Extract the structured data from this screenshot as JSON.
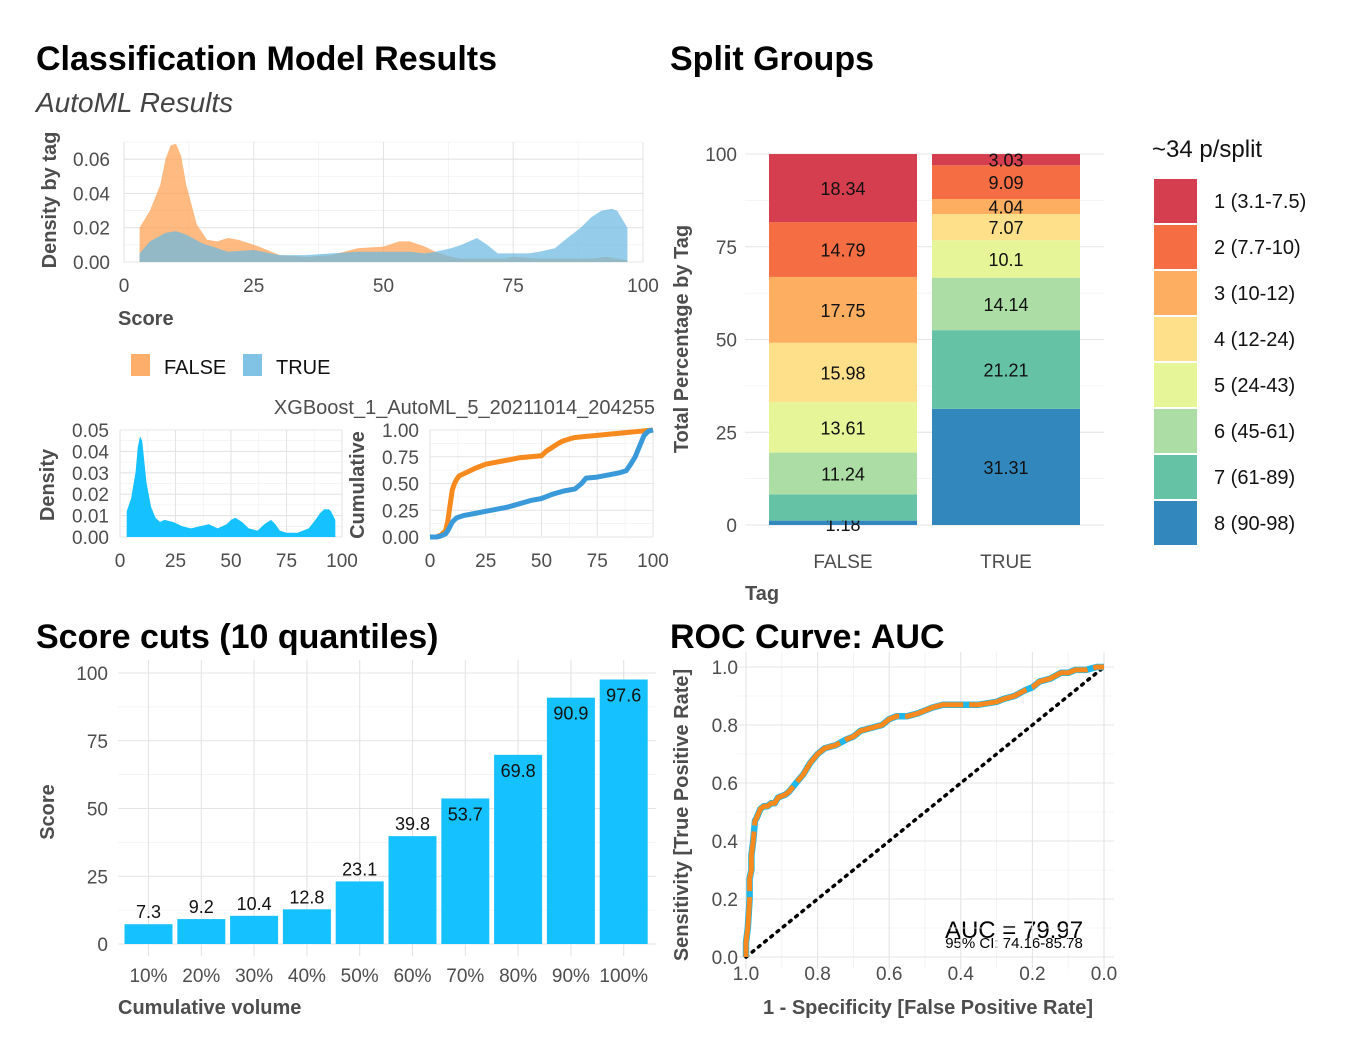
{
  "header": {
    "title": "Classification Model Results",
    "subtitle": "AutoML Results"
  },
  "colors": {
    "false_orange": "#FDA050",
    "true_blue": "#6BB9E0",
    "sky": "#16C1FF",
    "roc_orange": "#F68A1E",
    "roc_blue": "#20B8E8",
    "split_palette": [
      "#D53E4F",
      "#F46D43",
      "#FDAE61",
      "#FEE08B",
      "#E6F598",
      "#ABDDA4",
      "#66C2A5",
      "#3288BD"
    ]
  },
  "chart_data": [
    {
      "id": "density_by_tag",
      "type": "area",
      "xlabel": "Score",
      "ylabel": "Density by tag",
      "xlim": [
        0,
        100
      ],
      "ylim": [
        0,
        0.07
      ],
      "x_ticks": [
        "0",
        "25",
        "50",
        "75",
        "100"
      ],
      "y_ticks": [
        "0.00",
        "0.02",
        "0.04",
        "0.06"
      ],
      "legend_position": "bottom",
      "series": [
        {
          "name": "FALSE",
          "color": "#FDA050",
          "x": [
            3,
            5,
            7,
            8,
            9,
            10,
            11,
            12,
            14,
            16,
            18,
            20,
            22,
            24,
            26,
            30,
            35,
            40,
            45,
            50,
            53,
            55,
            58,
            60,
            63,
            65,
            68,
            70,
            73,
            75,
            80,
            85,
            90,
            93,
            95,
            97
          ],
          "y": [
            0.02,
            0.03,
            0.045,
            0.06,
            0.068,
            0.069,
            0.062,
            0.045,
            0.022,
            0.013,
            0.012,
            0.014,
            0.013,
            0.011,
            0.009,
            0.004,
            0.003,
            0.004,
            0.008,
            0.009,
            0.012,
            0.012,
            0.009,
            0.006,
            0.003,
            0.002,
            0.002,
            0.002,
            0.002,
            0.003,
            0.002,
            0.002,
            0.002,
            0.003,
            0.002,
            0.001
          ]
        },
        {
          "name": "TRUE",
          "color": "#6BB9E0",
          "x": [
            3,
            5,
            8,
            10,
            12,
            15,
            20,
            25,
            30,
            35,
            40,
            45,
            50,
            55,
            58,
            60,
            63,
            65,
            68,
            70,
            72,
            75,
            78,
            80,
            83,
            85,
            88,
            90,
            92,
            94,
            95,
            96,
            97
          ],
          "y": [
            0.005,
            0.012,
            0.017,
            0.018,
            0.016,
            0.011,
            0.006,
            0.007,
            0.004,
            0.004,
            0.005,
            0.006,
            0.006,
            0.006,
            0.005,
            0.006,
            0.008,
            0.01,
            0.014,
            0.01,
            0.005,
            0.005,
            0.005,
            0.006,
            0.008,
            0.013,
            0.02,
            0.026,
            0.03,
            0.031,
            0.03,
            0.025,
            0.02
          ]
        }
      ]
    },
    {
      "id": "score_density",
      "type": "area",
      "xlabel": "",
      "ylabel": "Density",
      "xlim": [
        0,
        100
      ],
      "ylim": [
        0,
        0.05
      ],
      "x_ticks": [
        "0",
        "25",
        "50",
        "75",
        "100"
      ],
      "y_ticks": [
        "0.00",
        "0.01",
        "0.02",
        "0.03",
        "0.04",
        "0.05"
      ],
      "x": [
        3,
        5,
        7,
        8,
        9,
        10,
        11,
        12,
        14,
        16,
        18,
        20,
        24,
        28,
        32,
        36,
        40,
        44,
        48,
        50,
        52,
        55,
        58,
        62,
        65,
        68,
        70,
        72,
        75,
        80,
        85,
        88,
        90,
        92,
        94,
        95,
        96,
        97
      ],
      "values": [
        0.012,
        0.018,
        0.03,
        0.042,
        0.047,
        0.045,
        0.035,
        0.025,
        0.014,
        0.009,
        0.007,
        0.008,
        0.007,
        0.005,
        0.004,
        0.005,
        0.006,
        0.004,
        0.006,
        0.008,
        0.009,
        0.007,
        0.004,
        0.003,
        0.006,
        0.008,
        0.006,
        0.003,
        0.002,
        0.002,
        0.004,
        0.008,
        0.011,
        0.013,
        0.013,
        0.012,
        0.01,
        0.008
      ]
    },
    {
      "id": "cumulative",
      "type": "line",
      "title": "XGBoost_1_AutoML_5_20211014_204255",
      "xlabel": "",
      "ylabel": "Cumulative",
      "xlim": [
        0,
        100
      ],
      "ylim": [
        0,
        1
      ],
      "x_ticks": [
        "0",
        "25",
        "50",
        "75",
        "100"
      ],
      "y_ticks": [
        "0.00",
        "0.25",
        "0.50",
        "0.75",
        "1.00"
      ],
      "series": [
        {
          "name": "FALSE",
          "color": "#F68A1E",
          "x": [
            0,
            3,
            5,
            7,
            8,
            9,
            10,
            11,
            12,
            13,
            15,
            18,
            20,
            25,
            30,
            35,
            40,
            45,
            50,
            52,
            55,
            58,
            60,
            63,
            65,
            70,
            75,
            80,
            85,
            90,
            95,
            100
          ],
          "y": [
            0,
            0,
            0.02,
            0.06,
            0.15,
            0.3,
            0.44,
            0.5,
            0.54,
            0.57,
            0.59,
            0.62,
            0.64,
            0.68,
            0.7,
            0.72,
            0.74,
            0.75,
            0.76,
            0.8,
            0.84,
            0.88,
            0.9,
            0.92,
            0.93,
            0.94,
            0.95,
            0.96,
            0.97,
            0.98,
            0.99,
            1.0
          ]
        },
        {
          "name": "TRUE",
          "color": "#3A9AD9",
          "x": [
            0,
            3,
            5,
            7,
            8,
            9,
            10,
            12,
            15,
            20,
            25,
            30,
            35,
            40,
            45,
            50,
            55,
            60,
            65,
            68,
            70,
            75,
            80,
            85,
            88,
            90,
            92,
            94,
            96,
            98,
            100
          ],
          "y": [
            0,
            0,
            0.01,
            0.03,
            0.06,
            0.1,
            0.14,
            0.18,
            0.2,
            0.22,
            0.24,
            0.26,
            0.28,
            0.31,
            0.34,
            0.36,
            0.4,
            0.43,
            0.45,
            0.5,
            0.55,
            0.56,
            0.58,
            0.6,
            0.62,
            0.68,
            0.75,
            0.85,
            0.95,
            0.99,
            1.0
          ]
        }
      ]
    },
    {
      "id": "split_groups",
      "type": "bar",
      "title": "Split Groups",
      "xlabel": "Tag",
      "ylabel": "Total Percentage by Tag",
      "ylim": [
        0,
        100
      ],
      "y_ticks": [
        "0",
        "25",
        "50",
        "75",
        "100"
      ],
      "categories": [
        "FALSE",
        "TRUE"
      ],
      "legend_title": "~34 p/split",
      "legend_position": "right",
      "series": [
        {
          "name": "1 (3.1-7.5)",
          "values": [
            18.34,
            3.03
          ],
          "labels": [
            "18.34",
            "3.03"
          ]
        },
        {
          "name": "2 (7.7-10)",
          "values": [
            14.79,
            9.09
          ],
          "labels": [
            "14.79",
            "9.09"
          ]
        },
        {
          "name": "3 (10-12)",
          "values": [
            17.75,
            4.04
          ],
          "labels": [
            "17.75",
            "4.04"
          ]
        },
        {
          "name": "4 (12-24)",
          "values": [
            15.98,
            7.07
          ],
          "labels": [
            "15.98",
            "7.07"
          ]
        },
        {
          "name": "5 (24-43)",
          "values": [
            13.61,
            10.1
          ],
          "labels": [
            "13.61",
            "10.1"
          ]
        },
        {
          "name": "6 (45-61)",
          "values": [
            11.24,
            14.14
          ],
          "labels": [
            "11.24",
            "14.14"
          ]
        },
        {
          "name": "7 (61-89)",
          "values": [
            7.1,
            21.21
          ],
          "labels": [
            "",
            "21.21"
          ]
        },
        {
          "name": "8 (90-98)",
          "values": [
            1.18,
            31.31
          ],
          "labels": [
            "1.18",
            "31.31"
          ]
        }
      ]
    },
    {
      "id": "score_cuts",
      "type": "bar",
      "title": "Score cuts (10 quantiles)",
      "xlabel": "Cumulative volume",
      "ylabel": "Score",
      "ylim": [
        0,
        100
      ],
      "y_ticks": [
        "0",
        "25",
        "50",
        "75",
        "100"
      ],
      "categories": [
        "10%",
        "20%",
        "30%",
        "40%",
        "50%",
        "60%",
        "70%",
        "80%",
        "90%",
        "100%"
      ],
      "values": [
        7.3,
        9.2,
        10.4,
        12.8,
        23.1,
        39.8,
        53.7,
        69.8,
        90.9,
        97.6
      ],
      "labels": [
        "7.3",
        "9.2",
        "10.4",
        "12.8",
        "23.1",
        "39.8",
        "53.7",
        "69.8",
        "90.9",
        "97.6"
      ]
    },
    {
      "id": "roc_curve",
      "type": "line",
      "title": "ROC Curve: AUC",
      "xlabel": "1 - Specificity [False Positive Rate]",
      "ylabel": "Sensitivity [True Positive Rate]",
      "xlim": [
        1,
        0
      ],
      "ylim": [
        0,
        1
      ],
      "x_ticks": [
        "1.0",
        "0.8",
        "0.6",
        "0.4",
        "0.2",
        "0.0"
      ],
      "y_ticks": [
        "0.0",
        "0.2",
        "0.4",
        "0.6",
        "0.8",
        "1.0"
      ],
      "annotation": "AUC = 79.97",
      "annotation_ci": "95% CI: 74.16-85.78",
      "specificity": [
        1.0,
        1.0,
        0.995,
        0.99,
        0.99,
        0.985,
        0.985,
        0.98,
        0.975,
        0.97,
        0.96,
        0.95,
        0.94,
        0.93,
        0.92,
        0.91,
        0.89,
        0.88,
        0.86,
        0.84,
        0.82,
        0.8,
        0.78,
        0.75,
        0.72,
        0.7,
        0.68,
        0.65,
        0.62,
        0.6,
        0.58,
        0.55,
        0.52,
        0.5,
        0.48,
        0.45,
        0.42,
        0.4,
        0.38,
        0.35,
        0.3,
        0.28,
        0.25,
        0.22,
        0.2,
        0.18,
        0.15,
        0.12,
        0.1,
        0.08,
        0.05,
        0.02,
        0.0
      ],
      "sensitivity": [
        0.0,
        0.05,
        0.1,
        0.2,
        0.27,
        0.3,
        0.35,
        0.4,
        0.47,
        0.48,
        0.51,
        0.52,
        0.52,
        0.53,
        0.53,
        0.55,
        0.56,
        0.57,
        0.6,
        0.63,
        0.67,
        0.7,
        0.72,
        0.73,
        0.75,
        0.76,
        0.78,
        0.79,
        0.8,
        0.82,
        0.83,
        0.83,
        0.84,
        0.85,
        0.86,
        0.87,
        0.87,
        0.87,
        0.87,
        0.87,
        0.88,
        0.89,
        0.9,
        0.92,
        0.93,
        0.95,
        0.96,
        0.98,
        0.98,
        0.99,
        0.99,
        1.0,
        1.0
      ],
      "reference_line": "diagonal"
    }
  ]
}
